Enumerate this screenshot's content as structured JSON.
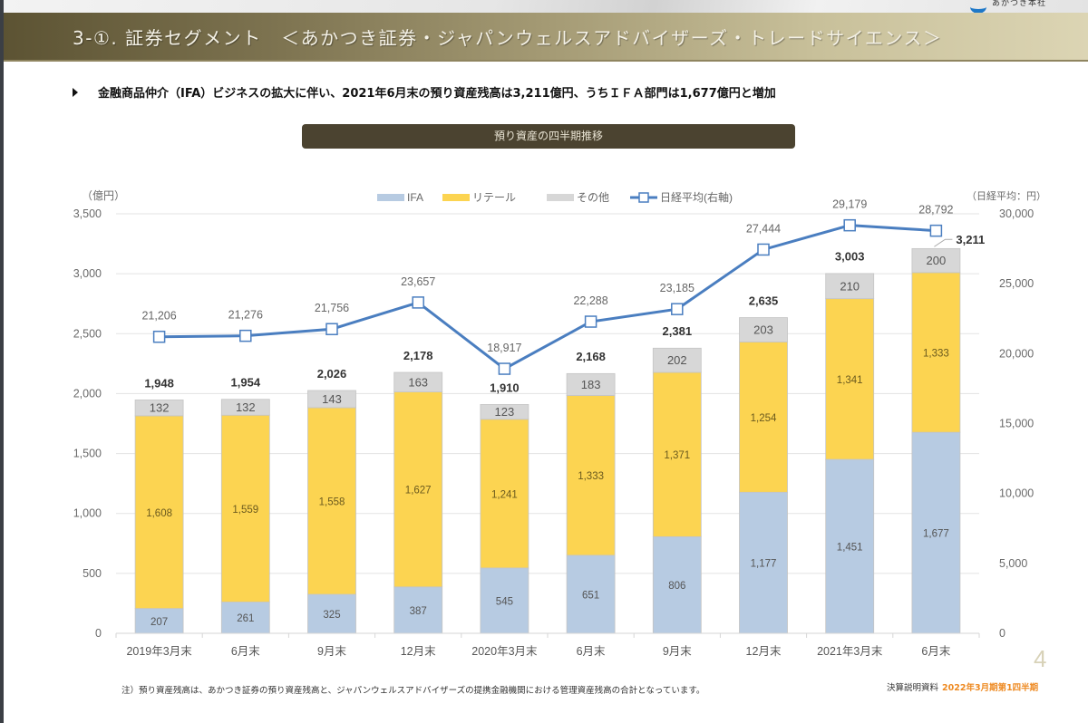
{
  "header": {
    "title": "3-①. 証券セグメント　＜あかつき証券・ジャパンウェルスアドバイザーズ・トレードサイエンス＞",
    "logo_text": "あかつき本社"
  },
  "summary": {
    "bullet_icon": "triangle-right-icon",
    "text": "金融商品仲介（IFA）ビジネスの拡大に伴い、2021年6月末の預り資産残高は3,211億円、うちＩＦＡ部門は1,677億円と増加"
  },
  "section_banner": "預り資産の四半期推移",
  "chart_data": {
    "type": "bar",
    "stacked": true,
    "title": "預り資産の四半期推移",
    "ylabel": "（億円）",
    "y2label": "（日経平均：円）",
    "ylim": [
      0,
      3500
    ],
    "y2lim": [
      0,
      30000
    ],
    "yticks": [
      "0",
      "500",
      "1,000",
      "1,500",
      "2,000",
      "2,500",
      "3,000",
      "3,500"
    ],
    "yticks_values": [
      0,
      500,
      1000,
      1500,
      2000,
      2500,
      3000,
      3500
    ],
    "y2ticks": [
      "0",
      "5,000",
      "10,000",
      "15,000",
      "20,000",
      "25,000",
      "30,000"
    ],
    "y2ticks_values": [
      0,
      5000,
      10000,
      15000,
      20000,
      25000,
      30000
    ],
    "grid": true,
    "legend_position": "top-center",
    "categories": [
      "2019年3月末",
      "6月末",
      "9月末",
      "12月末",
      "2020年3月末",
      "6月末",
      "9月末",
      "12月末",
      "2021年3月末",
      "6月末"
    ],
    "series": [
      {
        "name": "IFA",
        "type": "bar",
        "color": "#b7cbe2",
        "values": [
          207,
          261,
          325,
          387,
          545,
          651,
          806,
          1177,
          1451,
          1677
        ],
        "labels": [
          "207",
          "261",
          "325",
          "387",
          "545",
          "651",
          "806",
          "1,177",
          "1,451",
          "1,677"
        ]
      },
      {
        "name": "リテール",
        "type": "bar",
        "color": "#fcd451",
        "values": [
          1608,
          1559,
          1558,
          1627,
          1241,
          1333,
          1371,
          1254,
          1341,
          1333
        ],
        "labels": [
          "1,608",
          "1,559",
          "1,558",
          "1,627",
          "1,241",
          "1,333",
          "1,371",
          "1,254",
          "1,341",
          "1,333"
        ]
      },
      {
        "name": "その他",
        "type": "bar",
        "color": "#d7d7d7",
        "values": [
          132,
          132,
          143,
          163,
          123,
          183,
          202,
          203,
          210,
          200
        ],
        "labels": [
          "132",
          "132",
          "143",
          "163",
          "123",
          "183",
          "202",
          "203",
          "210",
          "200"
        ]
      },
      {
        "name": "日経平均(右軸)",
        "type": "line",
        "axis": "right",
        "color": "#4a7ec0",
        "values": [
          21206,
          21276,
          21756,
          23657,
          18917,
          22288,
          23185,
          27444,
          29179,
          28792
        ],
        "labels": [
          "21,206",
          "21,276",
          "21,756",
          "23,657",
          "18,917",
          "22,288",
          "23,185",
          "27,444",
          "29,179",
          "28,792"
        ]
      }
    ],
    "totals": [
      1948,
      1954,
      2026,
      2178,
      1910,
      2168,
      2381,
      2635,
      3003,
      3211
    ],
    "total_labels": [
      "1,948",
      "1,954",
      "2,026",
      "2,178",
      "1,910",
      "2,168",
      "2,381",
      "2,635",
      "3,003",
      "3,211"
    ]
  },
  "footnote": "注）預り資産残高は、あかつき証券の預り資産残高と、ジャパンウェルスアドバイザーズの提携金融機関における管理資産残高の合計となっています。",
  "page_number": "4",
  "footer": {
    "doc_label": "決算説明資料",
    "period": "2022年3月期第1四半期"
  }
}
